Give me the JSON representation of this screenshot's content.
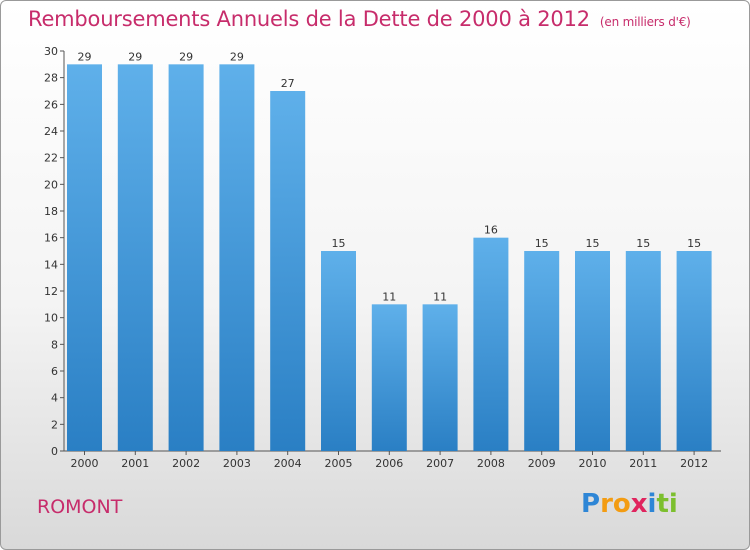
{
  "chart_data": {
    "type": "bar",
    "title": "Remboursements Annuels de la Dette de 2000 à 2012",
    "unit": "(en milliers d'€)",
    "categories": [
      "2000",
      "2001",
      "2002",
      "2003",
      "2004",
      "2005",
      "2006",
      "2007",
      "2008",
      "2009",
      "2010",
      "2011",
      "2012"
    ],
    "values": [
      29,
      29,
      29,
      29,
      27,
      15,
      11,
      11,
      16,
      15,
      15,
      15,
      15
    ],
    "ylim": [
      0,
      30
    ],
    "yticks": [
      0,
      2,
      4,
      6,
      8,
      10,
      12,
      14,
      16,
      18,
      20,
      22,
      24,
      26,
      28,
      30
    ],
    "xlabel": "",
    "ylabel": "",
    "grid": false,
    "colors": {
      "bar_top": "#5fb0ea",
      "bar_bottom": "#2a7fc4",
      "title": "#c72c6b"
    }
  },
  "footer": {
    "place": "ROMONT"
  },
  "logo": {
    "letters": [
      "P",
      "r",
      "o",
      "x",
      "i",
      "t",
      "i"
    ],
    "colors": [
      "#2e86d6",
      "#f39c12",
      "#f39c12",
      "#e0245e",
      "#2e86d6",
      "#7cbf2e",
      "#7cbf2e"
    ]
  }
}
